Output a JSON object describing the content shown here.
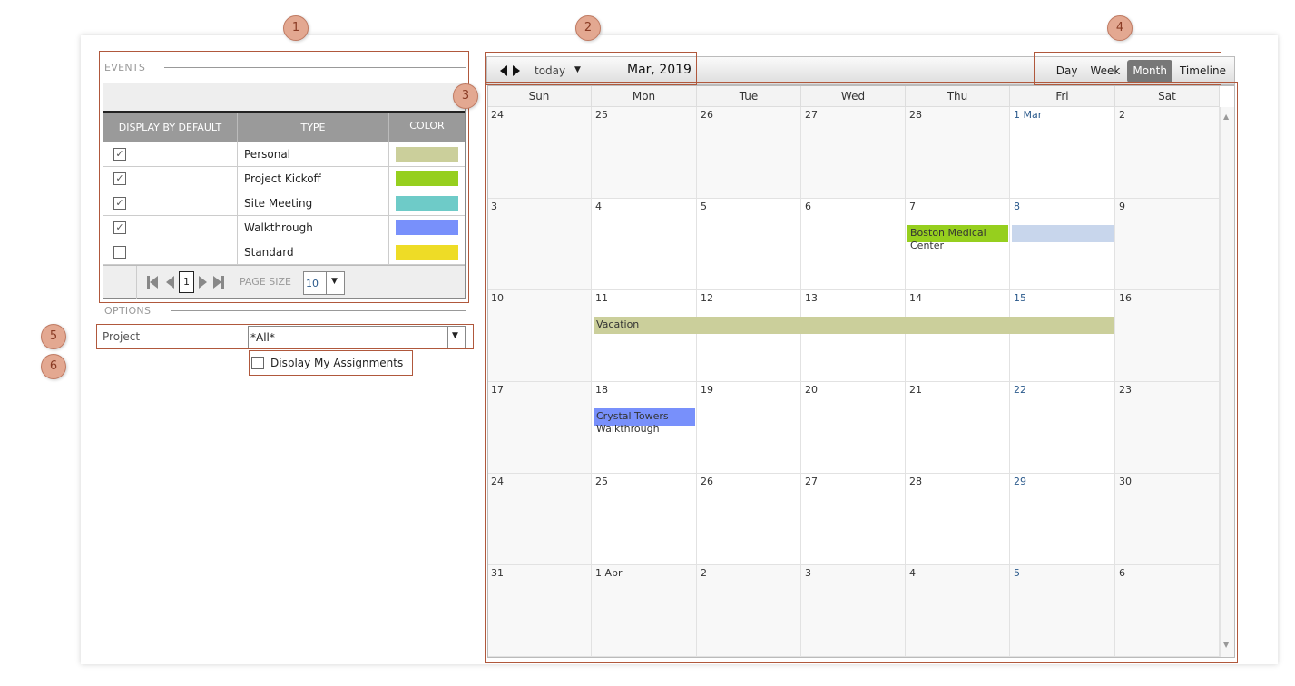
{
  "callouts": [
    "1",
    "2",
    "3",
    "4",
    "5",
    "6"
  ],
  "events_panel": {
    "section_title": "EVENTS",
    "columns": [
      "DISPLAY BY DEFAULT",
      "TYPE",
      "COLOR"
    ],
    "rows": [
      {
        "type": "Personal",
        "checked": true,
        "color": "#cbcf9b"
      },
      {
        "type": "Project Kickoff",
        "checked": true,
        "color": "#96cf1e"
      },
      {
        "type": "Site Meeting",
        "checked": true,
        "color": "#6ecbc8"
      },
      {
        "type": "Walkthrough",
        "checked": true,
        "color": "#7890fb"
      },
      {
        "type": "Standard",
        "checked": false,
        "color": "#eedc26"
      }
    ],
    "pager": {
      "page": "1",
      "page_size_label": "PAGE SIZE",
      "page_size": "10"
    }
  },
  "options": {
    "section_title": "OPTIONS",
    "project_label": "Project",
    "project_value": "*All*",
    "assignments_label": "Display My Assignments",
    "assignments_checked": false
  },
  "calendar": {
    "today_label": "today",
    "title": "Mar, 2019",
    "views": [
      "Day",
      "Week",
      "Month",
      "Timeline"
    ],
    "active_view": "Month",
    "day_names": [
      "Sun",
      "Mon",
      "Tue",
      "Wed",
      "Thu",
      "Fri",
      "Sat"
    ],
    "weeks": [
      [
        "24",
        "25",
        "26",
        "27",
        "28",
        "1 Mar",
        "2"
      ],
      [
        "3",
        "4",
        "5",
        "6",
        "7",
        "8",
        "9"
      ],
      [
        "10",
        "11",
        "12",
        "13",
        "14",
        "15",
        "16"
      ],
      [
        "17",
        "18",
        "19",
        "20",
        "21",
        "22",
        "23"
      ],
      [
        "24",
        "25",
        "26",
        "27",
        "28",
        "29",
        "30"
      ],
      [
        "31",
        "1 Apr",
        "2",
        "3",
        "4",
        "5",
        "6"
      ]
    ],
    "events": [
      {
        "title": "Boston Medical Center",
        "week": 1,
        "start": 4,
        "span": 1,
        "color": "#96cf1e"
      },
      {
        "title": "",
        "week": 1,
        "start": 5,
        "span": 1,
        "color": "#c8d6ec"
      },
      {
        "title": "Vacation",
        "week": 2,
        "start": 1,
        "span": 5,
        "color": "#cbcf9b"
      },
      {
        "title": "Crystal Towers Walkthrough",
        "week": 3,
        "start": 1,
        "span": 1,
        "color": "#7890fb"
      }
    ]
  }
}
